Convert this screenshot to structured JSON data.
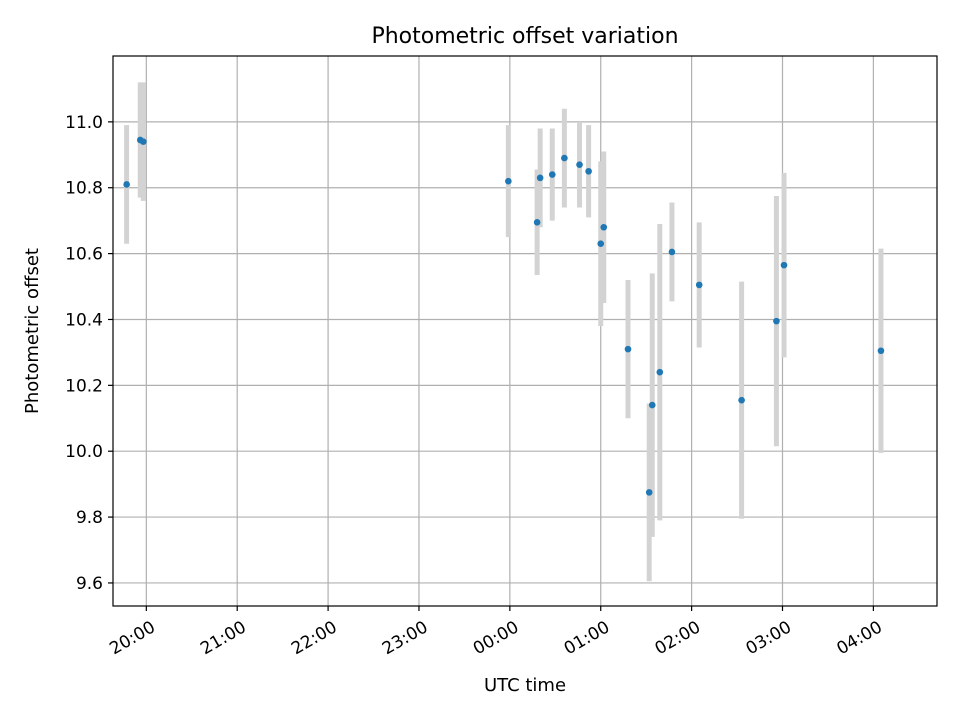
{
  "chart_data": {
    "type": "scatter",
    "title": "Photometric offset variation",
    "xlabel": "UTC time",
    "ylabel": "Photometric offset",
    "x_format": "HH:MM",
    "x_ticks": [
      "20:00",
      "21:00",
      "22:00",
      "23:00",
      "00:00",
      "01:00",
      "02:00",
      "03:00",
      "04:00"
    ],
    "y_ticks": [
      9.6,
      9.8,
      10.0,
      10.2,
      10.4,
      10.6,
      10.8,
      11.0
    ],
    "xlim": [
      "19:38",
      "04:42"
    ],
    "ylim": [
      9.53,
      11.2
    ],
    "grid": true,
    "marker_color": "#1f77b4",
    "errorbar_color": "#d3d3d3",
    "series": [
      {
        "points": [
          {
            "x": "19:47",
            "y": 10.81,
            "err": 0.18
          },
          {
            "x": "19:56",
            "y": 10.945,
            "err": 0.175
          },
          {
            "x": "19:58",
            "y": 10.94,
            "err": 0.18
          },
          {
            "x": "23:59",
            "y": 10.82,
            "err": 0.17
          },
          {
            "x": "00:18",
            "y": 10.695,
            "err": 0.16
          },
          {
            "x": "00:20",
            "y": 10.83,
            "err": 0.15
          },
          {
            "x": "00:28",
            "y": 10.84,
            "err": 0.14
          },
          {
            "x": "00:36",
            "y": 10.89,
            "err": 0.15
          },
          {
            "x": "00:46",
            "y": 10.87,
            "err": 0.13
          },
          {
            "x": "00:52",
            "y": 10.85,
            "err": 0.14
          },
          {
            "x": "01:00",
            "y": 10.63,
            "err": 0.25
          },
          {
            "x": "01:02",
            "y": 10.68,
            "err": 0.23
          },
          {
            "x": "01:18",
            "y": 10.31,
            "err": 0.21
          },
          {
            "x": "01:32",
            "y": 9.875,
            "err": 0.27
          },
          {
            "x": "01:34",
            "y": 10.14,
            "err": 0.4
          },
          {
            "x": "01:39",
            "y": 10.24,
            "err": 0.45
          },
          {
            "x": "01:47",
            "y": 10.605,
            "err": 0.15
          },
          {
            "x": "02:05",
            "y": 10.505,
            "err": 0.19
          },
          {
            "x": "02:33",
            "y": 10.155,
            "err": 0.36
          },
          {
            "x": "02:56",
            "y": 10.395,
            "err": 0.38
          },
          {
            "x": "03:01",
            "y": 10.565,
            "err": 0.28
          },
          {
            "x": "04:05",
            "y": 10.305,
            "err": 0.31
          }
        ]
      }
    ]
  }
}
